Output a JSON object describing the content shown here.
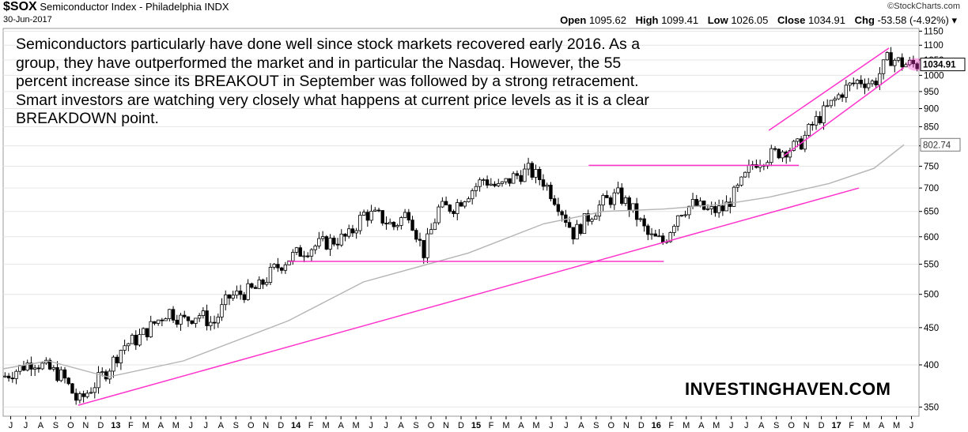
{
  "header": {
    "symbol": "$SOX",
    "name": "Semiconductor Index - Philadelphia",
    "exchange": "INDX",
    "date": "30-Jun-2017",
    "source": "©StockCharts.com",
    "open_label": "Open",
    "open": "1095.62",
    "high_label": "High",
    "high": "1099.41",
    "low_label": "Low",
    "low": "1026.05",
    "close_label": "Close",
    "close": "1034.91",
    "chg_label": "Chg",
    "chg": "-53.58 (-4.92%)"
  },
  "annotation": "Semiconductors particularly have done well since stock markets recovered early 2016. As a group, they have outperformed the market and in particular the Nasdaq. However, the 55 percent increase since its BREAKOUT in September was followed by a strong retracement. Smart investors are watching very closely what happens at current price levels as it is a clear BREAKDOWN point.",
  "brand": "INVESTINGHAVEN.COM",
  "colors": {
    "trendline": "#ff33cc",
    "moving_average": "#b4b4b4",
    "candle": "#000000",
    "grid": "#e6e6e6"
  },
  "chart_data": {
    "type": "candlestick",
    "y_scale": "log",
    "ylim": [
      340,
      1160
    ],
    "y_ticks": [
      350,
      400,
      450,
      500,
      550,
      600,
      650,
      700,
      750,
      800,
      850,
      900,
      950,
      1000,
      1050,
      1100,
      1150
    ],
    "x_range": [
      "2012-06",
      "2017-06"
    ],
    "x_ticks": [
      "J",
      "J",
      "A",
      "S",
      "O",
      "N",
      "D",
      "13",
      "F",
      "M",
      "A",
      "M",
      "J",
      "J",
      "A",
      "S",
      "O",
      "N",
      "D",
      "14",
      "F",
      "M",
      "A",
      "M",
      "J",
      "J",
      "A",
      "S",
      "O",
      "N",
      "D",
      "15",
      "F",
      "M",
      "A",
      "M",
      "J",
      "J",
      "A",
      "S",
      "O",
      "N",
      "D",
      "16",
      "F",
      "M",
      "A",
      "M",
      "J",
      "J",
      "A",
      "S",
      "O",
      "N",
      "D",
      "17",
      "F",
      "M",
      "A",
      "M",
      "J"
    ],
    "last_close_label": "1034.91",
    "ma_last_label": "802.74",
    "close_path": [
      [
        "2012-06",
        385
      ],
      [
        "2012-08",
        405
      ],
      [
        "2012-10",
        385
      ],
      [
        "2012-11",
        355
      ],
      [
        "2013-01",
        395
      ],
      [
        "2013-02",
        425
      ],
      [
        "2013-03",
        435
      ],
      [
        "2013-05",
        475
      ],
      [
        "2013-06",
        460
      ],
      [
        "2013-07",
        470
      ],
      [
        "2013-08",
        455
      ],
      [
        "2013-09",
        495
      ],
      [
        "2013-11",
        510
      ],
      [
        "2013-12",
        540
      ],
      [
        "2014-01",
        560
      ],
      [
        "2014-02",
        575
      ],
      [
        "2014-03",
        585
      ],
      [
        "2014-05",
        600
      ],
      [
        "2014-06",
        645
      ],
      [
        "2014-07",
        640
      ],
      [
        "2014-08",
        620
      ],
      [
        "2014-09",
        650
      ],
      [
        "2014-10",
        570
      ],
      [
        "2014-11",
        655
      ],
      [
        "2014-12",
        660
      ],
      [
        "2015-01",
        690
      ],
      [
        "2015-02",
        720
      ],
      [
        "2015-03",
        700
      ],
      [
        "2015-04",
        725
      ],
      [
        "2015-05",
        740
      ],
      [
        "2015-06",
        715
      ],
      [
        "2015-07",
        665
      ],
      [
        "2015-08",
        605
      ],
      [
        "2015-09",
        640
      ],
      [
        "2015-10",
        670
      ],
      [
        "2015-11",
        685
      ],
      [
        "2015-12",
        650
      ],
      [
        "2016-01",
        600
      ],
      [
        "2016-02",
        590
      ],
      [
        "2016-03",
        650
      ],
      [
        "2016-04",
        665
      ],
      [
        "2016-05",
        650
      ],
      [
        "2016-06",
        655
      ],
      [
        "2016-07",
        700
      ],
      [
        "2016-08",
        760
      ],
      [
        "2016-09",
        775
      ],
      [
        "2016-10",
        790
      ],
      [
        "2016-11",
        800
      ],
      [
        "2016-12",
        860
      ],
      [
        "2017-01",
        905
      ],
      [
        "2017-02",
        955
      ],
      [
        "2017-03",
        985
      ],
      [
        "2017-04",
        975
      ],
      [
        "2017-05",
        1060
      ],
      [
        "2017-06",
        1035
      ]
    ],
    "moving_average_path": [
      [
        "2012-06",
        395
      ],
      [
        "2012-09",
        405
      ],
      [
        "2013-01",
        385
      ],
      [
        "2013-06",
        405
      ],
      [
        "2014-01",
        460
      ],
      [
        "2014-06",
        520
      ],
      [
        "2015-01",
        570
      ],
      [
        "2015-06",
        625
      ],
      [
        "2015-10",
        650
      ],
      [
        "2016-02",
        655
      ],
      [
        "2016-06",
        665
      ],
      [
        "2016-09",
        680
      ],
      [
        "2017-01",
        710
      ],
      [
        "2017-04",
        745
      ],
      [
        "2017-06",
        802.74
      ]
    ],
    "trendlines": [
      {
        "from": [
          "2012-11",
          352
        ],
        "to": [
          "2017-03",
          700
        ]
      },
      {
        "from": [
          "2014-01",
          555
        ],
        "to": [
          "2016-02",
          555
        ]
      },
      {
        "from": [
          "2015-09",
          752
        ],
        "to": [
          "2016-11",
          752
        ]
      },
      {
        "from": [
          "2016-09",
          840
        ],
        "to": [
          "2017-05",
          1090
        ]
      },
      {
        "from": [
          "2016-10",
          775
        ],
        "to": [
          "2017-06",
          1025
        ]
      }
    ]
  }
}
